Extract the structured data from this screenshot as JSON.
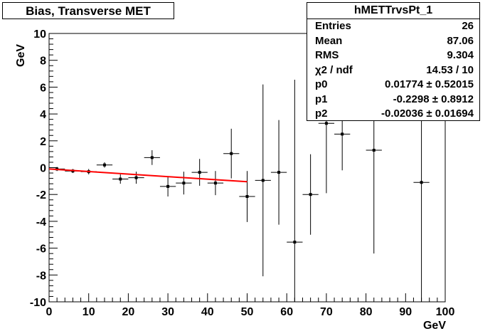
{
  "title": "Bias, Transverse MET",
  "stats": {
    "name": "hMETTrvsPt_1",
    "rows": [
      {
        "key": "Entries",
        "value": "26"
      },
      {
        "key": "Mean",
        "value": "87.06"
      },
      {
        "key": "RMS",
        "value": "9.304"
      },
      {
        "key": "χ2 / ndf",
        "value": "14.53 / 10"
      },
      {
        "key": "p0",
        "value": "0.01774 ± 0.52015"
      },
      {
        "key": "p1",
        "value": "-0.2298 ± 0.8912"
      },
      {
        "key": "p2",
        "value": "-0.02036 ± 0.01694"
      }
    ]
  },
  "chart_data": {
    "type": "scatter",
    "title": "Bias, Transverse MET",
    "xlabel": "GeV",
    "ylabel": "GeV",
    "xlim": [
      0,
      100
    ],
    "ylim": [
      -10,
      10
    ],
    "xticks": [
      0,
      10,
      20,
      30,
      40,
      50,
      60,
      70,
      80,
      90,
      100
    ],
    "yticks": [
      -10,
      -8,
      -6,
      -4,
      -2,
      0,
      2,
      4,
      6,
      8,
      10
    ],
    "points": [
      {
        "x": 2,
        "y": -0.1,
        "xerr": 2,
        "yerr": 0.15
      },
      {
        "x": 6,
        "y": -0.25,
        "xerr": 2,
        "yerr": 0.15
      },
      {
        "x": 10,
        "y": -0.3,
        "xerr": 2,
        "yerr": 0.2
      },
      {
        "x": 14,
        "y": 0.2,
        "xerr": 2,
        "yerr": 0.2
      },
      {
        "x": 18,
        "y": -0.85,
        "xerr": 2,
        "yerr": 0.35
      },
      {
        "x": 22,
        "y": -0.75,
        "xerr": 2,
        "yerr": 0.45
      },
      {
        "x": 26,
        "y": 0.75,
        "xerr": 2,
        "yerr": 0.55
      },
      {
        "x": 30,
        "y": -1.4,
        "xerr": 2,
        "yerr": 0.75
      },
      {
        "x": 34,
        "y": -1.15,
        "xerr": 2,
        "yerr": 0.85
      },
      {
        "x": 38,
        "y": -0.35,
        "xerr": 2,
        "yerr": 1.0
      },
      {
        "x": 42,
        "y": -1.15,
        "xerr": 2,
        "yerr": 0.9
      },
      {
        "x": 46,
        "y": 1.05,
        "xerr": 2,
        "yerr": 1.85
      },
      {
        "x": 50,
        "y": -2.15,
        "xerr": 2,
        "yerr": 1.9
      },
      {
        "x": 54,
        "y": -0.95,
        "xerr": 2,
        "yerr": 7.15
      },
      {
        "x": 58,
        "y": -0.35,
        "xerr": 2,
        "yerr": 3.9
      },
      {
        "x": 62,
        "y": -5.55,
        "xerr": 2,
        "yerr": 12.1
      },
      {
        "x": 66,
        "y": -2.0,
        "xerr": 2,
        "yerr": 3.0
      },
      {
        "x": 70,
        "y": 3.3,
        "xerr": 2,
        "yerr": 5.2
      },
      {
        "x": 74,
        "y": 2.5,
        "xerr": 2,
        "yerr": 2.7
      },
      {
        "x": 82,
        "y": 1.3,
        "xerr": 2,
        "yerr": 7.7
      },
      {
        "x": 94,
        "y": -1.1,
        "xerr": 2,
        "yerr": 9.0
      }
    ],
    "fit": {
      "x_start": 0,
      "x_end": 50,
      "y_start": -0.1,
      "y_end": -1.05,
      "color": "#ff0000"
    },
    "grid": false,
    "legend": "top-right",
    "colors": {
      "marker": "#000000",
      "fit": "#ff0000",
      "axis": "#000000"
    }
  }
}
